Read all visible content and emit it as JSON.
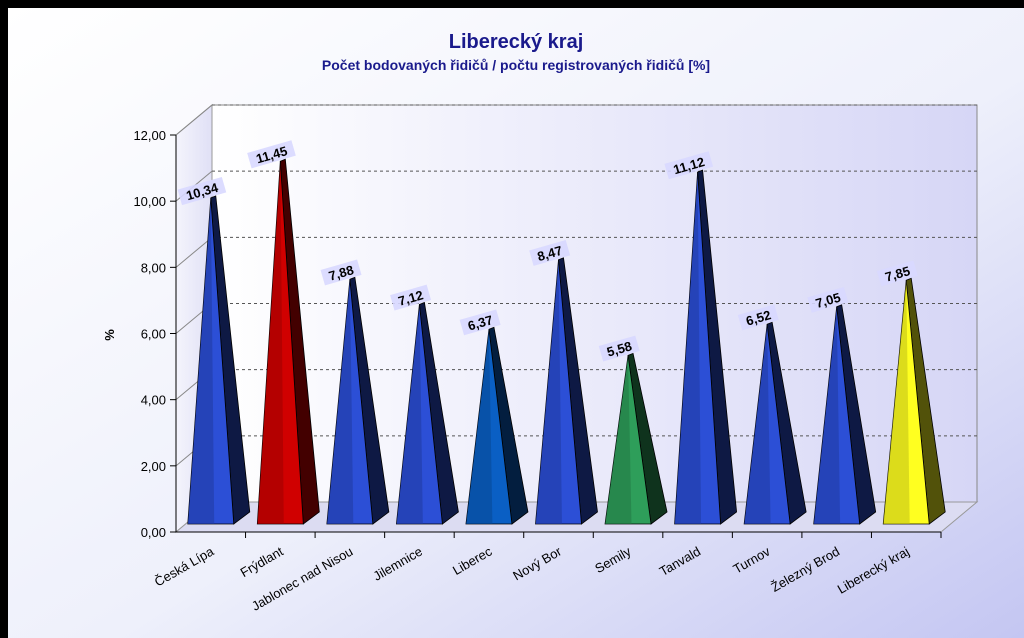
{
  "chart_data": {
    "type": "bar",
    "title": "Liberecký kraj",
    "subtitle": "Počet bodovaných řidičů / počtu registrovaných řidičů [%]",
    "ylabel": "%",
    "xlabel": "",
    "ylim": [
      0,
      12
    ],
    "yticks": [
      "0,00",
      "2,00",
      "4,00",
      "6,00",
      "8,00",
      "10,00",
      "12,00"
    ],
    "grid": true,
    "categories": [
      "Česká Lípa",
      "Frýdlant",
      "Jablonec nad Nisou",
      "Jilemnice",
      "Liberec",
      "Nový Bor",
      "Semily",
      "Tanvald",
      "Turnov",
      "Železný Brod",
      "Liberecký kraj"
    ],
    "values": [
      10.34,
      11.45,
      7.88,
      7.12,
      6.37,
      8.47,
      5.58,
      11.12,
      6.52,
      7.05,
      7.85
    ],
    "value_labels": [
      "10,34",
      "11,45",
      "7,88",
      "7,12",
      "6,37",
      "8,47",
      "5,58",
      "11,12",
      "6,52",
      "7,05",
      "7,85"
    ],
    "bar_colors": [
      "#2c4fd6",
      "#d00000",
      "#2c4fd6",
      "#2c4fd6",
      "#0a5fc4",
      "#2c4fd6",
      "#2e9e5a",
      "#2c4fd6",
      "#2c4fd6",
      "#2c4fd6",
      "#ffff20"
    ],
    "colors": {
      "background_light": "#ffffff",
      "background_dark": "#c8c8f4",
      "title": "#1a1a8c",
      "gridline": "#555555",
      "label_box": "#d8d8ff"
    }
  }
}
